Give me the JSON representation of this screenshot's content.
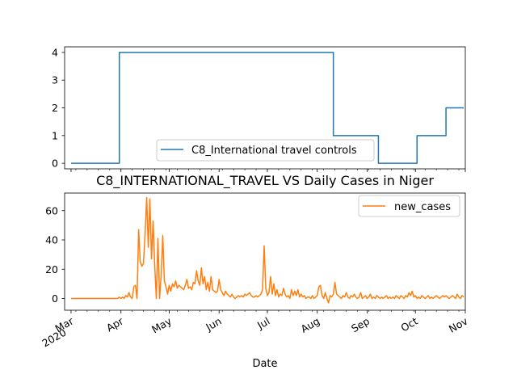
{
  "chart_data": [
    {
      "type": "line",
      "title": "",
      "xlabel": "",
      "ylabel": "",
      "ylim": [
        -0.2,
        4.2
      ],
      "yticks": [
        0,
        1,
        2,
        3,
        4
      ],
      "legend_position": "lower-center",
      "series": [
        {
          "name": "C8_International travel controls",
          "color": "#1f77b4",
          "points": [
            [
              "2020-03-01",
              0
            ],
            [
              "2020-03-31",
              0
            ],
            [
              "2020-03-31",
              4
            ],
            [
              "2020-08-11",
              4
            ],
            [
              "2020-08-11",
              1
            ],
            [
              "2020-09-08",
              1
            ],
            [
              "2020-09-08",
              0
            ],
            [
              "2020-10-02",
              0
            ],
            [
              "2020-10-02",
              1
            ],
            [
              "2020-10-20",
              1
            ],
            [
              "2020-10-20",
              2
            ],
            [
              "2020-10-31",
              2
            ]
          ]
        }
      ]
    },
    {
      "type": "line",
      "title": "C8_INTERNATIONAL_TRAVEL VS Daily Cases in Niger",
      "xlabel": "Date",
      "ylabel": "",
      "ylim": [
        -8,
        72
      ],
      "yticks": [
        0,
        20,
        40,
        60
      ],
      "x_ticks": [
        "Mar\n2020",
        "Apr",
        "May",
        "Jun",
        "Jul",
        "Aug",
        "Sep",
        "Oct",
        "Nov"
      ],
      "legend_position": "upper-right",
      "series": [
        {
          "name": "new_cases",
          "color": "#ff7f0e",
          "points": [
            [
              "2020-03-01",
              0
            ],
            [
              "2020-03-30",
              0
            ],
            [
              "2020-03-31",
              1
            ],
            [
              "2020-04-01",
              0
            ],
            [
              "2020-04-02",
              1
            ],
            [
              "2020-04-03",
              0
            ],
            [
              "2020-04-04",
              2
            ],
            [
              "2020-04-05",
              1
            ],
            [
              "2020-04-06",
              4
            ],
            [
              "2020-04-07",
              1
            ],
            [
              "2020-04-08",
              0
            ],
            [
              "2020-04-09",
              8
            ],
            [
              "2020-04-10",
              9
            ],
            [
              "2020-04-11",
              0
            ],
            [
              "2020-04-12",
              47
            ],
            [
              "2020-04-13",
              25
            ],
            [
              "2020-04-14",
              22
            ],
            [
              "2020-04-15",
              24
            ],
            [
              "2020-04-16",
              44
            ],
            [
              "2020-04-17",
              69
            ],
            [
              "2020-04-18",
              35
            ],
            [
              "2020-04-19",
              68
            ],
            [
              "2020-04-20",
              27
            ],
            [
              "2020-04-21",
              53
            ],
            [
              "2020-04-22",
              22
            ],
            [
              "2020-04-23",
              0
            ],
            [
              "2020-04-24",
              41
            ],
            [
              "2020-04-25",
              0
            ],
            [
              "2020-04-26",
              16
            ],
            [
              "2020-04-27",
              43
            ],
            [
              "2020-04-28",
              12
            ],
            [
              "2020-04-29",
              8
            ],
            [
              "2020-04-30",
              3
            ],
            [
              "2020-05-01",
              9
            ],
            [
              "2020-05-02",
              5
            ],
            [
              "2020-05-03",
              10
            ],
            [
              "2020-05-04",
              8
            ],
            [
              "2020-05-05",
              12
            ],
            [
              "2020-05-06",
              7
            ],
            [
              "2020-05-07",
              9
            ],
            [
              "2020-05-08",
              8
            ],
            [
              "2020-05-09",
              7
            ],
            [
              "2020-05-10",
              6
            ],
            [
              "2020-05-11",
              9
            ],
            [
              "2020-05-12",
              13
            ],
            [
              "2020-05-13",
              7
            ],
            [
              "2020-05-14",
              8
            ],
            [
              "2020-05-15",
              6
            ],
            [
              "2020-05-16",
              11
            ],
            [
              "2020-05-17",
              10
            ],
            [
              "2020-05-18",
              19
            ],
            [
              "2020-05-19",
              12
            ],
            [
              "2020-05-20",
              9
            ],
            [
              "2020-05-21",
              21
            ],
            [
              "2020-05-22",
              10
            ],
            [
              "2020-05-23",
              15
            ],
            [
              "2020-05-24",
              6
            ],
            [
              "2020-05-25",
              11
            ],
            [
              "2020-05-26",
              5
            ],
            [
              "2020-05-27",
              15
            ],
            [
              "2020-05-28",
              6
            ],
            [
              "2020-05-29",
              5
            ],
            [
              "2020-05-30",
              4
            ],
            [
              "2020-05-31",
              5
            ],
            [
              "2020-06-01",
              13
            ],
            [
              "2020-06-02",
              6
            ],
            [
              "2020-06-03",
              4
            ],
            [
              "2020-06-04",
              2
            ],
            [
              "2020-06-05",
              5
            ],
            [
              "2020-06-06",
              3
            ],
            [
              "2020-06-07",
              2
            ],
            [
              "2020-06-08",
              1
            ],
            [
              "2020-06-09",
              3
            ],
            [
              "2020-06-10",
              1
            ],
            [
              "2020-06-11",
              0
            ],
            [
              "2020-06-12",
              1
            ],
            [
              "2020-06-13",
              2
            ],
            [
              "2020-06-14",
              1
            ],
            [
              "2020-06-15",
              2
            ],
            [
              "2020-06-16",
              1
            ],
            [
              "2020-06-17",
              3
            ],
            [
              "2020-06-18",
              2
            ],
            [
              "2020-06-19",
              3
            ],
            [
              "2020-06-20",
              4
            ],
            [
              "2020-06-21",
              2
            ],
            [
              "2020-06-22",
              1
            ],
            [
              "2020-06-23",
              1
            ],
            [
              "2020-06-24",
              2
            ],
            [
              "2020-06-25",
              1
            ],
            [
              "2020-06-26",
              2
            ],
            [
              "2020-06-27",
              3
            ],
            [
              "2020-06-28",
              6
            ],
            [
              "2020-06-29",
              36
            ],
            [
              "2020-06-30",
              7
            ],
            [
              "2020-07-01",
              2
            ],
            [
              "2020-07-02",
              4
            ],
            [
              "2020-07-03",
              15
            ],
            [
              "2020-07-04",
              3
            ],
            [
              "2020-07-05",
              10
            ],
            [
              "2020-07-06",
              2
            ],
            [
              "2020-07-07",
              6
            ],
            [
              "2020-07-08",
              1
            ],
            [
              "2020-07-09",
              3
            ],
            [
              "2020-07-10",
              2
            ],
            [
              "2020-07-11",
              7
            ],
            [
              "2020-07-12",
              3
            ],
            [
              "2020-07-13",
              1
            ],
            [
              "2020-07-14",
              2
            ],
            [
              "2020-07-15",
              0
            ],
            [
              "2020-07-16",
              6
            ],
            [
              "2020-07-17",
              2
            ],
            [
              "2020-07-18",
              5
            ],
            [
              "2020-07-19",
              2
            ],
            [
              "2020-07-20",
              6
            ],
            [
              "2020-07-21",
              1
            ],
            [
              "2020-07-22",
              3
            ],
            [
              "2020-07-23",
              1
            ],
            [
              "2020-07-24",
              2
            ],
            [
              "2020-07-25",
              0
            ],
            [
              "2020-07-26",
              1
            ],
            [
              "2020-07-27",
              1
            ],
            [
              "2020-07-28",
              0
            ],
            [
              "2020-07-29",
              2
            ],
            [
              "2020-07-30",
              0
            ],
            [
              "2020-07-31",
              1
            ],
            [
              "2020-08-01",
              2
            ],
            [
              "2020-08-02",
              8
            ],
            [
              "2020-08-03",
              9
            ],
            [
              "2020-08-04",
              2
            ],
            [
              "2020-08-05",
              0
            ],
            [
              "2020-08-06",
              4
            ],
            [
              "2020-08-07",
              0
            ],
            [
              "2020-08-08",
              -3
            ],
            [
              "2020-08-09",
              2
            ],
            [
              "2020-08-10",
              1
            ],
            [
              "2020-08-11",
              3
            ],
            [
              "2020-08-12",
              11
            ],
            [
              "2020-08-13",
              3
            ],
            [
              "2020-08-14",
              2
            ],
            [
              "2020-08-15",
              1
            ],
            [
              "2020-08-16",
              0
            ],
            [
              "2020-08-17",
              2
            ],
            [
              "2020-08-18",
              1
            ],
            [
              "2020-08-19",
              4
            ],
            [
              "2020-08-20",
              1
            ],
            [
              "2020-08-21",
              0
            ],
            [
              "2020-08-22",
              2
            ],
            [
              "2020-08-23",
              1
            ],
            [
              "2020-08-24",
              3
            ],
            [
              "2020-08-25",
              1
            ],
            [
              "2020-08-26",
              0
            ],
            [
              "2020-08-27",
              1
            ],
            [
              "2020-08-28",
              4
            ],
            [
              "2020-08-29",
              0
            ],
            [
              "2020-08-30",
              1
            ],
            [
              "2020-08-31",
              2
            ],
            [
              "2020-09-01",
              0
            ],
            [
              "2020-09-02",
              1
            ],
            [
              "2020-09-03",
              3
            ],
            [
              "2020-09-04",
              0
            ],
            [
              "2020-09-05",
              1
            ],
            [
              "2020-09-06",
              0
            ],
            [
              "2020-09-07",
              2
            ],
            [
              "2020-09-08",
              1
            ],
            [
              "2020-09-09",
              0
            ],
            [
              "2020-09-10",
              1
            ],
            [
              "2020-09-11",
              0
            ],
            [
              "2020-09-12",
              1
            ],
            [
              "2020-09-13",
              2
            ],
            [
              "2020-09-14",
              0
            ],
            [
              "2020-09-15",
              1
            ],
            [
              "2020-09-16",
              0
            ],
            [
              "2020-09-17",
              1
            ],
            [
              "2020-09-18",
              0
            ],
            [
              "2020-09-19",
              2
            ],
            [
              "2020-09-20",
              1
            ],
            [
              "2020-09-21",
              0
            ],
            [
              "2020-09-22",
              2
            ],
            [
              "2020-09-23",
              1
            ],
            [
              "2020-09-24",
              0
            ],
            [
              "2020-09-25",
              2
            ],
            [
              "2020-09-26",
              1
            ],
            [
              "2020-09-27",
              4
            ],
            [
              "2020-09-28",
              2
            ],
            [
              "2020-09-29",
              5
            ],
            [
              "2020-09-30",
              1
            ],
            [
              "2020-10-01",
              2
            ],
            [
              "2020-10-02",
              0
            ],
            [
              "2020-10-03",
              1
            ],
            [
              "2020-10-04",
              0
            ],
            [
              "2020-10-05",
              2
            ],
            [
              "2020-10-06",
              1
            ],
            [
              "2020-10-07",
              0
            ],
            [
              "2020-10-08",
              1
            ],
            [
              "2020-10-09",
              2
            ],
            [
              "2020-10-10",
              0
            ],
            [
              "2020-10-11",
              1
            ],
            [
              "2020-10-12",
              0
            ],
            [
              "2020-10-13",
              1
            ],
            [
              "2020-10-14",
              2
            ],
            [
              "2020-10-15",
              1
            ],
            [
              "2020-10-16",
              0
            ],
            [
              "2020-10-17",
              1
            ],
            [
              "2020-10-18",
              2
            ],
            [
              "2020-10-19",
              1
            ],
            [
              "2020-10-20",
              2
            ],
            [
              "2020-10-21",
              1
            ],
            [
              "2020-10-22",
              0
            ],
            [
              "2020-10-23",
              1
            ],
            [
              "2020-10-24",
              2
            ],
            [
              "2020-10-25",
              1
            ],
            [
              "2020-10-26",
              0
            ],
            [
              "2020-10-27",
              3
            ],
            [
              "2020-10-28",
              1
            ],
            [
              "2020-10-29",
              0
            ],
            [
              "2020-10-30",
              2
            ],
            [
              "2020-10-31",
              1
            ]
          ]
        }
      ]
    }
  ]
}
